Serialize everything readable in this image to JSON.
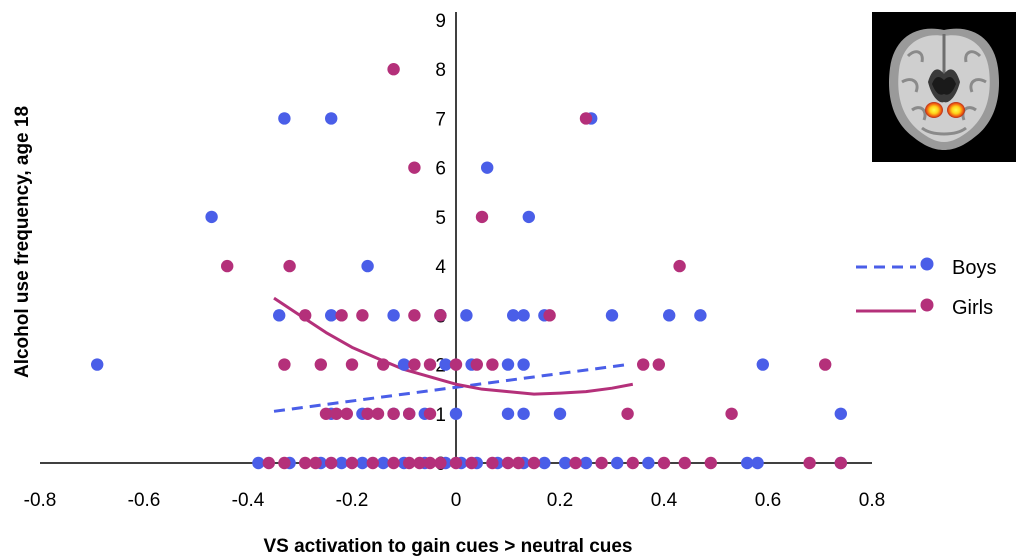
{
  "chart_data": {
    "type": "scatter",
    "title": "",
    "xlabel": "VS activation to gain cues > neutral cues",
    "ylabel": "Alcohol use frequency, age 18",
    "xlim": [
      -0.8,
      0.8
    ],
    "ylim": [
      0,
      9
    ],
    "x_ticks": [
      "-0.8",
      "-0.6",
      "-0.4",
      "-0.2",
      "0",
      "0.2",
      "0.4",
      "0.6",
      "0.8"
    ],
    "y_ticks": [
      "0",
      "1",
      "2",
      "3",
      "4",
      "5",
      "6",
      "7",
      "8",
      "9"
    ],
    "grid": false,
    "legend_position": "right",
    "colors": {
      "Boys": "#4a5ee8",
      "Girls": "#b4307a"
    },
    "series": [
      {
        "name": "Boys",
        "trendline": "linear",
        "points": [
          [
            -0.69,
            2
          ],
          [
            -0.47,
            5
          ],
          [
            -0.33,
            7
          ],
          [
            -0.24,
            7
          ],
          [
            -0.17,
            4
          ],
          [
            0.06,
            6
          ],
          [
            0.14,
            5
          ],
          [
            0.26,
            7
          ],
          [
            -0.34,
            3
          ],
          [
            -0.24,
            3
          ],
          [
            -0.12,
            3
          ],
          [
            -0.03,
            3
          ],
          [
            0.02,
            3
          ],
          [
            0.11,
            3
          ],
          [
            0.13,
            3
          ],
          [
            0.17,
            3
          ],
          [
            0.3,
            3
          ],
          [
            0.41,
            3
          ],
          [
            0.47,
            3
          ],
          [
            -0.1,
            2
          ],
          [
            -0.02,
            2
          ],
          [
            0.03,
            2
          ],
          [
            0.1,
            2
          ],
          [
            0.13,
            2
          ],
          [
            0.59,
            2
          ],
          [
            -0.24,
            1
          ],
          [
            -0.18,
            1
          ],
          [
            -0.12,
            1
          ],
          [
            -0.09,
            1
          ],
          [
            -0.06,
            1
          ],
          [
            0.0,
            1
          ],
          [
            0.1,
            1
          ],
          [
            0.13,
            1
          ],
          [
            0.2,
            1
          ],
          [
            0.74,
            1
          ],
          [
            -0.38,
            0
          ],
          [
            -0.32,
            0
          ],
          [
            -0.26,
            0
          ],
          [
            -0.22,
            0
          ],
          [
            -0.18,
            0
          ],
          [
            -0.14,
            0
          ],
          [
            -0.1,
            0
          ],
          [
            -0.06,
            0
          ],
          [
            -0.02,
            0
          ],
          [
            0.01,
            0
          ],
          [
            0.04,
            0
          ],
          [
            0.08,
            0
          ],
          [
            0.13,
            0
          ],
          [
            0.17,
            0
          ],
          [
            0.21,
            0
          ],
          [
            0.25,
            0
          ],
          [
            0.31,
            0
          ],
          [
            0.37,
            0
          ],
          [
            0.56,
            0
          ],
          [
            0.58,
            0
          ],
          [
            0.74,
            0
          ]
        ]
      },
      {
        "name": "Girls",
        "trendline": "polynomial",
        "points": [
          [
            -0.12,
            8
          ],
          [
            -0.08,
            6
          ],
          [
            0.25,
            7
          ],
          [
            0.05,
            5
          ],
          [
            -0.44,
            4
          ],
          [
            -0.32,
            4
          ],
          [
            0.43,
            4
          ],
          [
            -0.29,
            3
          ],
          [
            -0.22,
            3
          ],
          [
            -0.18,
            3
          ],
          [
            -0.08,
            3
          ],
          [
            -0.03,
            3
          ],
          [
            0.18,
            3
          ],
          [
            -0.33,
            2
          ],
          [
            -0.26,
            2
          ],
          [
            -0.2,
            2
          ],
          [
            -0.14,
            2
          ],
          [
            -0.08,
            2
          ],
          [
            -0.05,
            2
          ],
          [
            0.0,
            2
          ],
          [
            0.04,
            2
          ],
          [
            0.07,
            2
          ],
          [
            0.36,
            2
          ],
          [
            0.39,
            2
          ],
          [
            0.71,
            2
          ],
          [
            -0.25,
            1
          ],
          [
            -0.23,
            1
          ],
          [
            -0.21,
            1
          ],
          [
            -0.17,
            1
          ],
          [
            -0.15,
            1
          ],
          [
            -0.12,
            1
          ],
          [
            -0.09,
            1
          ],
          [
            -0.05,
            1
          ],
          [
            0.33,
            1
          ],
          [
            0.53,
            1
          ],
          [
            -0.36,
            0
          ],
          [
            -0.33,
            0
          ],
          [
            -0.29,
            0
          ],
          [
            -0.27,
            0
          ],
          [
            -0.24,
            0
          ],
          [
            -0.2,
            0
          ],
          [
            -0.16,
            0
          ],
          [
            -0.12,
            0
          ],
          [
            -0.09,
            0
          ],
          [
            -0.07,
            0
          ],
          [
            -0.05,
            0
          ],
          [
            -0.03,
            0
          ],
          [
            0.0,
            0
          ],
          [
            0.03,
            0
          ],
          [
            0.07,
            0
          ],
          [
            0.1,
            0
          ],
          [
            0.12,
            0
          ],
          [
            0.15,
            0
          ],
          [
            0.23,
            0
          ],
          [
            0.28,
            0
          ],
          [
            0.34,
            0
          ],
          [
            0.4,
            0
          ],
          [
            0.44,
            0
          ],
          [
            0.49,
            0
          ],
          [
            0.68,
            0
          ],
          [
            0.74,
            0
          ]
        ]
      }
    ],
    "trendlines": {
      "Boys": [
        [
          -0.35,
          1.05
        ],
        [
          0.33,
          2.0
        ]
      ],
      "Girls": [
        [
          -0.35,
          3.35
        ],
        [
          -0.3,
          3.0
        ],
        [
          -0.25,
          2.65
        ],
        [
          -0.2,
          2.35
        ],
        [
          -0.15,
          2.12
        ],
        [
          -0.1,
          1.9
        ],
        [
          -0.05,
          1.75
        ],
        [
          0.0,
          1.6
        ],
        [
          0.05,
          1.5
        ],
        [
          0.1,
          1.45
        ],
        [
          0.15,
          1.4
        ],
        [
          0.2,
          1.42
        ],
        [
          0.25,
          1.45
        ],
        [
          0.3,
          1.52
        ],
        [
          0.34,
          1.6
        ]
      ]
    }
  },
  "legend": {
    "items": [
      {
        "label": "Boys",
        "style": "dashed"
      },
      {
        "label": "Girls",
        "style": "solid"
      }
    ]
  },
  "inset_image": {
    "icon": "brain-scan-icon"
  }
}
